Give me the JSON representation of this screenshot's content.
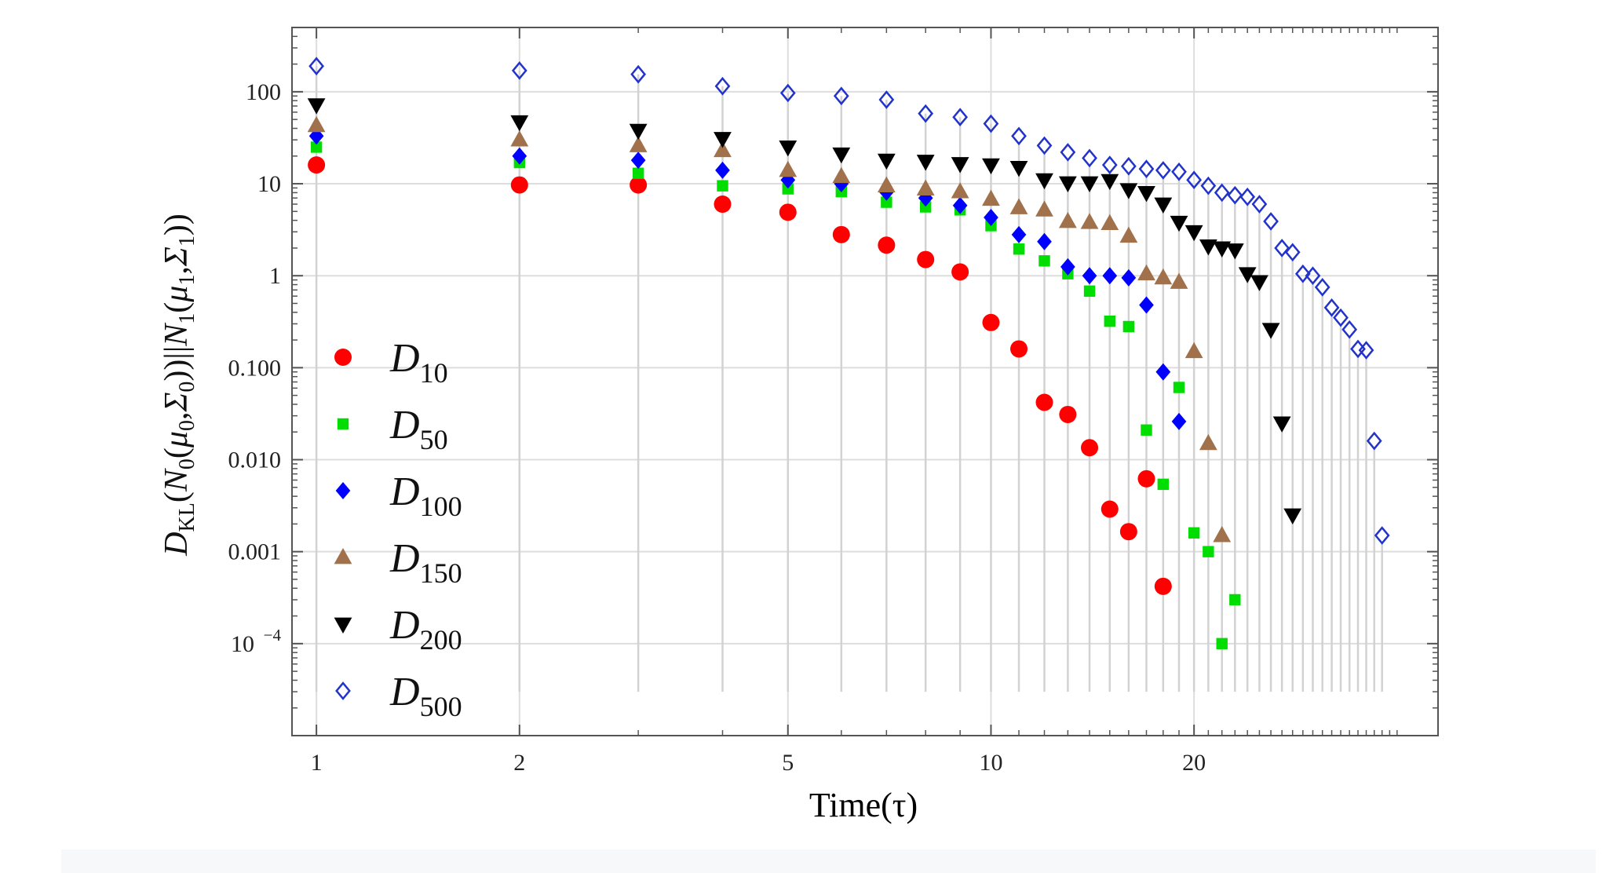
{
  "chart_data": {
    "type": "scatter",
    "title": "",
    "xlabel": "Time(τ)",
    "ylabel": "D_KL(N_0(μ_0,Σ_0)||N_1(μ_1,Σ_1))",
    "xscale": "log",
    "yscale": "log",
    "xlim": [
      0.92,
      46
    ],
    "ylim": [
      1e-05,
      500
    ],
    "xticks": [
      {
        "value": 1,
        "label": "1"
      },
      {
        "value": 2,
        "label": "2"
      },
      {
        "value": 5,
        "label": "5"
      },
      {
        "value": 10,
        "label": "10"
      },
      {
        "value": 20,
        "label": "20"
      }
    ],
    "yticks": [
      {
        "value": 0.0001,
        "label": "10",
        "exp": "−4"
      },
      {
        "value": 0.001,
        "label": "0.001",
        "exp": ""
      },
      {
        "value": 0.01,
        "label": "0.010",
        "exp": ""
      },
      {
        "value": 0.1,
        "label": "0.100",
        "exp": ""
      },
      {
        "value": 1,
        "label": "1",
        "exp": ""
      },
      {
        "value": 10,
        "label": "10",
        "exp": ""
      },
      {
        "value": 100,
        "label": "100",
        "exp": ""
      }
    ],
    "grid": true,
    "legend_position": "left",
    "series": [
      {
        "name": "D10",
        "sub": "10",
        "marker": "circle",
        "color": "#ff0000",
        "points": [
          [
            1,
            16
          ],
          [
            2,
            9.7
          ],
          [
            3,
            9.7
          ],
          [
            4,
            6
          ],
          [
            5,
            4.9
          ],
          [
            6,
            2.8
          ],
          [
            7,
            2.15
          ],
          [
            8,
            1.5
          ],
          [
            9,
            1.1
          ],
          [
            10,
            0.31
          ],
          [
            11,
            0.16
          ],
          [
            12,
            0.042
          ],
          [
            13,
            0.031
          ],
          [
            14,
            0.0135
          ],
          [
            15,
            0.0029
          ],
          [
            16,
            0.00165
          ],
          [
            17,
            0.0062
          ],
          [
            18,
            0.00042
          ]
        ]
      },
      {
        "name": "D50",
        "sub": "50",
        "marker": "square",
        "color": "#00dd00",
        "points": [
          [
            1,
            25
          ],
          [
            2,
            17
          ],
          [
            3,
            13
          ],
          [
            4,
            9.5
          ],
          [
            5,
            8.8
          ],
          [
            6,
            8.2
          ],
          [
            7,
            6.3
          ],
          [
            8,
            5.6
          ],
          [
            9,
            5.2
          ],
          [
            10,
            3.5
          ],
          [
            11,
            1.95
          ],
          [
            12,
            1.45
          ],
          [
            13,
            1.05
          ],
          [
            14,
            0.68
          ],
          [
            15,
            0.32
          ],
          [
            16,
            0.28
          ],
          [
            17,
            0.021
          ],
          [
            18,
            0.0054
          ],
          [
            19,
            0.061
          ],
          [
            20,
            0.0016
          ],
          [
            21,
            0.001
          ],
          [
            22,
            0.0001
          ],
          [
            23,
            0.0003
          ]
        ]
      },
      {
        "name": "D100",
        "sub": "100",
        "marker": "diamond",
        "color": "#0000ff",
        "points": [
          [
            1,
            33
          ],
          [
            2,
            20
          ],
          [
            3,
            18
          ],
          [
            4,
            14
          ],
          [
            5,
            11
          ],
          [
            6,
            10
          ],
          [
            7,
            8.1
          ],
          [
            8,
            7
          ],
          [
            9,
            5.8
          ],
          [
            10,
            4.3
          ],
          [
            11,
            2.8
          ],
          [
            12,
            2.35
          ],
          [
            13,
            1.25
          ],
          [
            14,
            1.0
          ],
          [
            15,
            1.0
          ],
          [
            16,
            0.95
          ],
          [
            17,
            0.48
          ],
          [
            18,
            0.09
          ],
          [
            19,
            0.026
          ]
        ]
      },
      {
        "name": "D150",
        "sub": "150",
        "marker": "triangle-up",
        "color": "#a0714a",
        "points": [
          [
            1,
            43
          ],
          [
            2,
            30
          ],
          [
            3,
            26
          ],
          [
            4,
            23
          ],
          [
            5,
            14
          ],
          [
            6,
            12
          ],
          [
            7,
            9.5
          ],
          [
            8,
            8.8
          ],
          [
            9,
            8.2
          ],
          [
            10,
            6.8
          ],
          [
            11,
            5.5
          ],
          [
            12,
            5.2
          ],
          [
            13,
            3.9
          ],
          [
            14,
            3.8
          ],
          [
            15,
            3.7
          ],
          [
            16,
            2.7
          ],
          [
            17,
            1.05
          ],
          [
            18,
            0.95
          ],
          [
            19,
            0.85
          ],
          [
            20,
            0.15
          ],
          [
            21,
            0.015
          ],
          [
            22,
            0.0015
          ]
        ]
      },
      {
        "name": "D200",
        "sub": "200",
        "marker": "triangle-down",
        "color": "#000000",
        "points": [
          [
            1,
            72
          ],
          [
            2,
            47
          ],
          [
            3,
            38
          ],
          [
            4,
            31
          ],
          [
            5,
            25
          ],
          [
            6,
            21
          ],
          [
            7,
            18
          ],
          [
            8,
            17.5
          ],
          [
            9,
            16.5
          ],
          [
            10,
            16
          ],
          [
            11,
            15
          ],
          [
            12,
            11
          ],
          [
            13,
            10.2
          ],
          [
            14,
            10.2
          ],
          [
            15,
            10.8
          ],
          [
            16,
            8.6
          ],
          [
            17,
            8
          ],
          [
            18,
            6
          ],
          [
            19,
            3.8
          ],
          [
            20,
            3
          ],
          [
            21,
            2.1
          ],
          [
            22,
            2
          ],
          [
            23,
            1.9
          ],
          [
            24,
            1.05
          ],
          [
            25,
            0.86
          ],
          [
            26,
            0.26
          ],
          [
            27,
            0.025
          ],
          [
            28,
            0.0025
          ]
        ]
      },
      {
        "name": "D500",
        "sub": "500",
        "marker": "diamond-open",
        "color": "#2233cc",
        "points": [
          [
            1,
            190
          ],
          [
            2,
            170
          ],
          [
            3,
            155
          ],
          [
            4,
            115
          ],
          [
            5,
            97
          ],
          [
            6,
            90
          ],
          [
            7,
            82
          ],
          [
            8,
            58
          ],
          [
            9,
            53
          ],
          [
            10,
            45
          ],
          [
            11,
            33
          ],
          [
            12,
            26
          ],
          [
            13,
            22
          ],
          [
            14,
            19
          ],
          [
            15,
            16
          ],
          [
            16,
            15.5
          ],
          [
            17,
            14.5
          ],
          [
            18,
            14
          ],
          [
            19,
            13.5
          ],
          [
            20,
            11
          ],
          [
            21,
            9.5
          ],
          [
            22,
            8
          ],
          [
            23,
            7.5
          ],
          [
            24,
            7.2
          ],
          [
            25,
            6
          ],
          [
            26,
            3.9
          ],
          [
            27,
            2
          ],
          [
            28,
            1.8
          ],
          [
            29,
            1.05
          ],
          [
            30,
            1
          ],
          [
            31,
            0.75
          ],
          [
            32,
            0.45
          ],
          [
            33,
            0.35
          ],
          [
            34,
            0.26
          ],
          [
            35,
            0.16
          ],
          [
            36,
            0.155
          ],
          [
            37,
            0.016
          ],
          [
            38,
            0.0015
          ]
        ]
      }
    ]
  }
}
